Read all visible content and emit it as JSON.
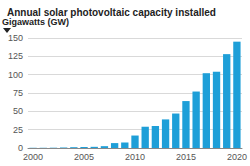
{
  "chart_data": {
    "type": "bar",
    "title": "Annual solar photovoltaic capacity installed",
    "ylabel": "Gigawatts (GW)",
    "categories": [
      "2000",
      null,
      null,
      null,
      null,
      "2005",
      null,
      null,
      null,
      null,
      "2010",
      null,
      null,
      null,
      null,
      "2015",
      null,
      null,
      null,
      null,
      "2020"
    ],
    "values": [
      0.3,
      0.3,
      0.4,
      0.6,
      1.1,
      1.4,
      1.6,
      2.5,
      6.7,
      7.4,
      17,
      29,
      30,
      39,
      47,
      64,
      77,
      102,
      104,
      128,
      145
    ],
    "color": "#1e9fd8",
    "ylim": [
      0,
      150
    ],
    "yticks": [
      0,
      25,
      50,
      75,
      100,
      125,
      150
    ],
    "grid": true
  }
}
